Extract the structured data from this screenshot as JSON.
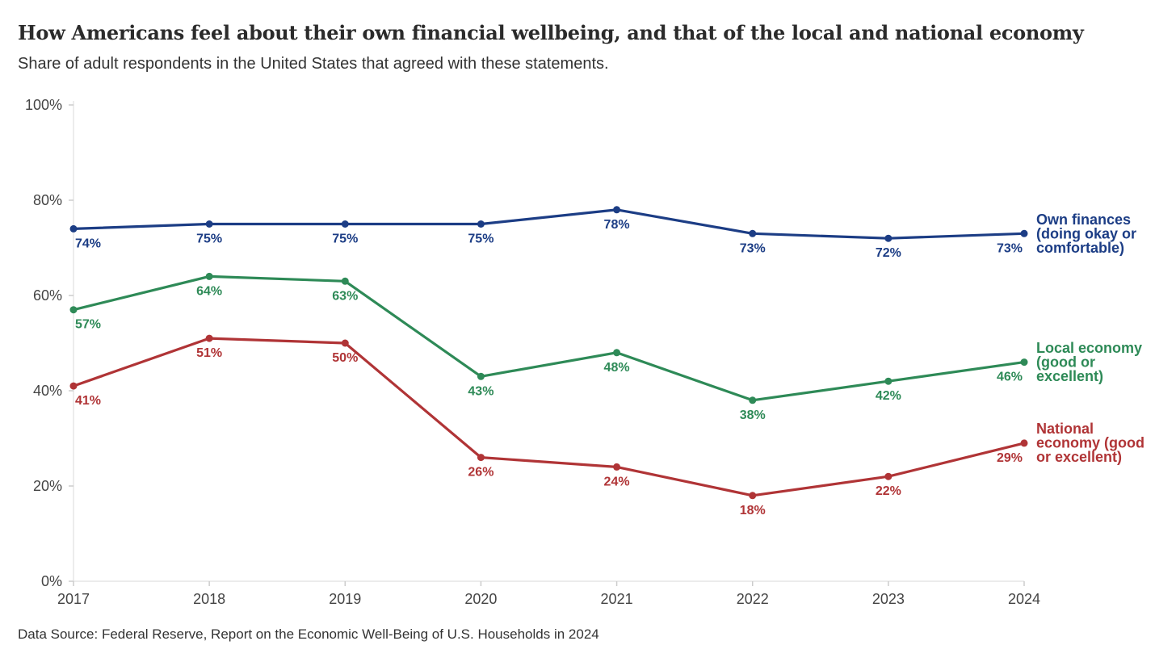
{
  "title": "How Americans feel about their own financial wellbeing, and that of the local and national economy",
  "subtitle": "Share of adult respondents in the United States that agreed with these statements.",
  "source": "Data Source: Federal Reserve, Report on the Economic Well-Being of U.S. Households in 2024",
  "chart_data": {
    "type": "line",
    "x": [
      "2017",
      "2018",
      "2019",
      "2020",
      "2021",
      "2022",
      "2023",
      "2024"
    ],
    "ylim": [
      0,
      100
    ],
    "yticks": [
      0,
      20,
      40,
      60,
      80,
      100
    ],
    "ytick_labels": [
      "0%",
      "20%",
      "40%",
      "60%",
      "80%",
      "100%"
    ],
    "grid": false,
    "legend": "direct labels at right end of each line",
    "series": [
      {
        "name": "Own finances (doing okay or comfortable)",
        "label_lines": [
          "Own finances",
          "(doing okay or",
          "comfortable)"
        ],
        "color": "#1c3d85",
        "values": [
          74,
          75,
          75,
          75,
          78,
          73,
          72,
          73
        ],
        "labels": [
          "74%",
          "75%",
          "75%",
          "75%",
          "78%",
          "73%",
          "72%",
          "73%"
        ]
      },
      {
        "name": "Local economy (good or excellent)",
        "label_lines": [
          "Local economy",
          "(good or",
          "excellent)"
        ],
        "color": "#2e8a57",
        "values": [
          57,
          64,
          63,
          43,
          48,
          38,
          42,
          46
        ],
        "labels": [
          "57%",
          "64%",
          "63%",
          "43%",
          "48%",
          "38%",
          "42%",
          "46%"
        ]
      },
      {
        "name": "National economy (good or excellent)",
        "label_lines": [
          "National",
          "economy (good",
          "or excellent)"
        ],
        "color": "#b03436",
        "values": [
          41,
          51,
          50,
          26,
          24,
          18,
          22,
          29
        ],
        "labels": [
          "41%",
          "51%",
          "50%",
          "26%",
          "24%",
          "18%",
          "22%",
          "29%"
        ]
      }
    ]
  }
}
